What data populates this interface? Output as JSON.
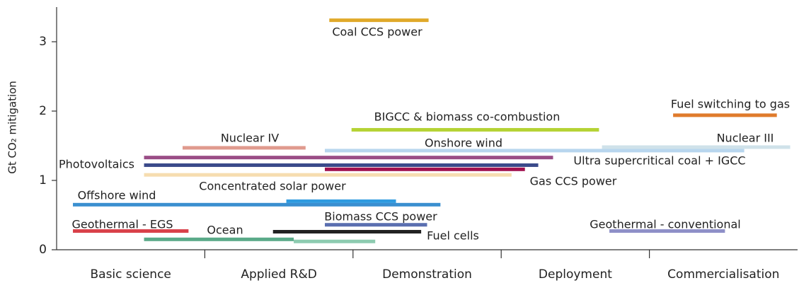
{
  "chart_data": {
    "type": "range",
    "ylabel": "Gt CO₂ mitigation",
    "categories": [
      "Basic science",
      "Applied R&D",
      "Demonstration",
      "Deployment",
      "Commercialisation"
    ],
    "xlim": [
      0,
      5
    ],
    "ylim": [
      0,
      3.5
    ],
    "yticks": [
      0,
      1,
      2,
      3
    ],
    "grid": false,
    "bars": {
      "start": [
        1.84,
        1.99,
        4.16,
        0.85,
        1.81,
        3.68,
        0.59,
        0.59,
        1.81,
        0.59,
        0.11,
        1.55,
        1.81,
        1.46,
        0.11,
        0.59,
        1.6,
        3.73
      ],
      "end": [
        2.51,
        3.66,
        4.86,
        1.68,
        4.64,
        4.95,
        3.35,
        3.25,
        3.16,
        3.07,
        2.59,
        2.29,
        2.5,
        2.46,
        0.89,
        1.6,
        2.15,
        4.51
      ],
      "values": [
        3.31,
        1.73,
        1.94,
        1.47,
        1.43,
        1.48,
        1.33,
        1.22,
        1.16,
        1.08,
        0.65,
        0.7,
        0.36,
        0.26,
        0.27,
        0.15,
        0.12,
        0.27
      ],
      "colors": [
        "#e0a92a",
        "#b5d334",
        "#e07b2c",
        "#e09a8e",
        "#b8d6ee",
        "#cfe2ea",
        "#9a4d86",
        "#3a4a8a",
        "#a0114e",
        "#f6ddb0",
        "#3a8fd0",
        "#2f9be0",
        "#5a6fb0",
        "#222222",
        "#d9414a",
        "#5aaa88",
        "#8dcbb0",
        "#8e8fc8"
      ]
    },
    "annotations": [
      "Coal CCS power",
      "Fuel switching to gas",
      "BIGCC & biomass co-combustion",
      "Nuclear IV",
      "Nuclear III",
      "Onshore wind",
      "Photovoltaics",
      "Ultra supercritical coal + IGCC",
      "Gas CCS power",
      "Concentrated solar power",
      "Offshore wind",
      "Biomass CCS power",
      "Geothermal - EGS",
      "Geothermal - conventional",
      "Ocean",
      "Fuel cells"
    ]
  }
}
